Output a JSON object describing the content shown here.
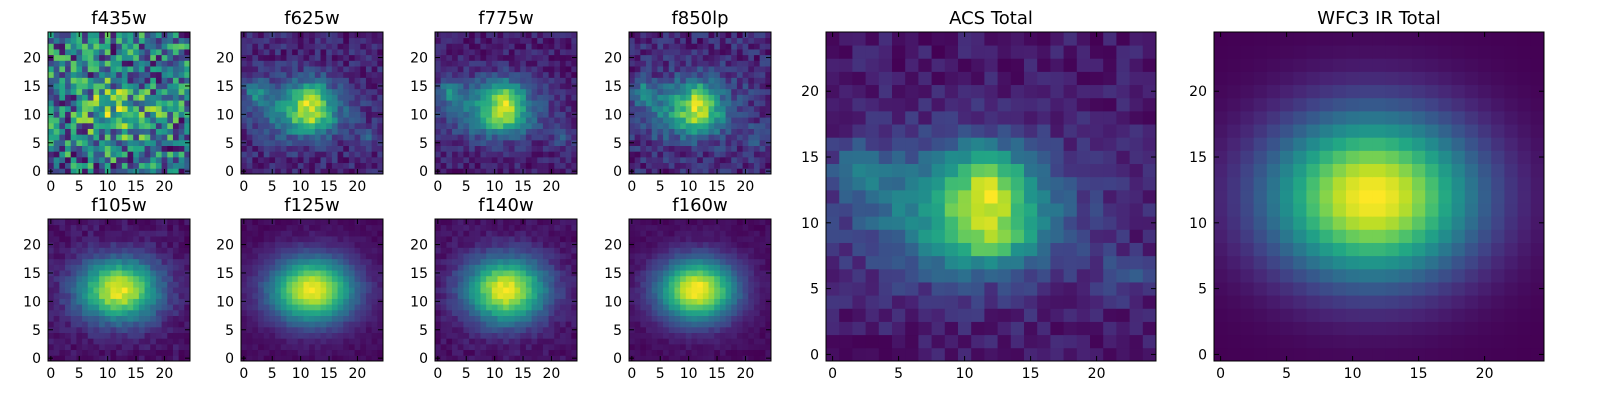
{
  "chart_data": [
    {
      "type": "heatmap",
      "title": "f435w",
      "colormap": "viridis",
      "grid_size": 25,
      "model": "noise",
      "peak": [
        12,
        11
      ],
      "sigma": [
        5,
        4
      ],
      "noise": 0.5,
      "seed": 11,
      "xticks": [
        0,
        5,
        10,
        15,
        20
      ],
      "yticks": [
        0,
        5,
        10,
        15,
        20
      ],
      "xlim": [
        0,
        24
      ],
      "ylim": [
        0,
        24
      ]
    },
    {
      "type": "heatmap",
      "title": "f625w",
      "colormap": "viridis",
      "grid_size": 25,
      "model": "acs",
      "noise": 0.12,
      "seed": 23,
      "xticks": [
        0,
        5,
        10,
        15,
        20
      ],
      "yticks": [
        0,
        5,
        10,
        15,
        20
      ],
      "xlim": [
        0,
        24
      ],
      "ylim": [
        0,
        24
      ]
    },
    {
      "type": "heatmap",
      "title": "f775w",
      "colormap": "viridis",
      "grid_size": 25,
      "model": "acs",
      "noise": 0.1,
      "seed": 37,
      "xticks": [
        0,
        5,
        10,
        15,
        20
      ],
      "yticks": [
        0,
        5,
        10,
        15,
        20
      ],
      "xlim": [
        0,
        24
      ],
      "ylim": [
        0,
        24
      ]
    },
    {
      "type": "heatmap",
      "title": "f850lp",
      "colormap": "viridis",
      "grid_size": 25,
      "model": "acs",
      "noise": 0.14,
      "seed": 41,
      "xticks": [
        0,
        5,
        10,
        15,
        20
      ],
      "yticks": [
        0,
        5,
        10,
        15,
        20
      ],
      "xlim": [
        0,
        24
      ],
      "ylim": [
        0,
        24
      ]
    },
    {
      "type": "heatmap",
      "title": "f105w",
      "colormap": "viridis",
      "grid_size": 25,
      "model": "ir",
      "peak": [
        12,
        12
      ],
      "sigma": [
        5.0,
        3.8
      ],
      "noise": 0.06,
      "seed": 53,
      "xticks": [
        0,
        5,
        10,
        15,
        20
      ],
      "yticks": [
        0,
        5,
        10,
        15,
        20
      ],
      "xlim": [
        0,
        24
      ],
      "ylim": [
        0,
        24
      ]
    },
    {
      "type": "heatmap",
      "title": "f125w",
      "colormap": "viridis",
      "grid_size": 25,
      "model": "ir",
      "peak": [
        12,
        12
      ],
      "sigma": [
        5.2,
        4.0
      ],
      "noise": 0.03,
      "seed": 61,
      "xticks": [
        0,
        5,
        10,
        15,
        20
      ],
      "yticks": [
        0,
        5,
        10,
        15,
        20
      ],
      "xlim": [
        0,
        24
      ],
      "ylim": [
        0,
        24
      ]
    },
    {
      "type": "heatmap",
      "title": "f140w",
      "colormap": "viridis",
      "grid_size": 25,
      "model": "ir",
      "peak": [
        12,
        12
      ],
      "sigma": [
        5.0,
        4.0
      ],
      "noise": 0.05,
      "seed": 71,
      "xticks": [
        0,
        5,
        10,
        15,
        20
      ],
      "yticks": [
        0,
        5,
        10,
        15,
        20
      ],
      "xlim": [
        0,
        24
      ],
      "ylim": [
        0,
        24
      ]
    },
    {
      "type": "heatmap",
      "title": "f160w",
      "colormap": "viridis",
      "grid_size": 25,
      "model": "ir",
      "peak": [
        11.5,
        12
      ],
      "sigma": [
        4.8,
        3.8
      ],
      "noise": 0.03,
      "seed": 83,
      "xticks": [
        0,
        5,
        10,
        15,
        20
      ],
      "yticks": [
        0,
        5,
        10,
        15,
        20
      ],
      "xlim": [
        0,
        24
      ],
      "ylim": [
        0,
        24
      ]
    },
    {
      "type": "heatmap",
      "title": "ACS Total",
      "colormap": "viridis",
      "grid_size": 25,
      "model": "acs",
      "noise": 0.08,
      "seed": 97,
      "xticks": [
        0,
        5,
        10,
        15,
        20
      ],
      "yticks": [
        0,
        5,
        10,
        15,
        20
      ],
      "xlim": [
        0,
        24
      ],
      "ylim": [
        0,
        24
      ]
    },
    {
      "type": "heatmap",
      "title": "WFC3 IR Total",
      "colormap": "viridis",
      "grid_size": 25,
      "model": "ir",
      "peak": [
        11.5,
        12
      ],
      "sigma": [
        5.5,
        4.4
      ],
      "noise": 0.0,
      "seed": 101,
      "xticks": [
        0,
        5,
        10,
        15,
        20
      ],
      "yticks": [
        0,
        5,
        10,
        15,
        20
      ],
      "xlim": [
        0,
        24
      ],
      "ylim": [
        0,
        24
      ]
    }
  ]
}
